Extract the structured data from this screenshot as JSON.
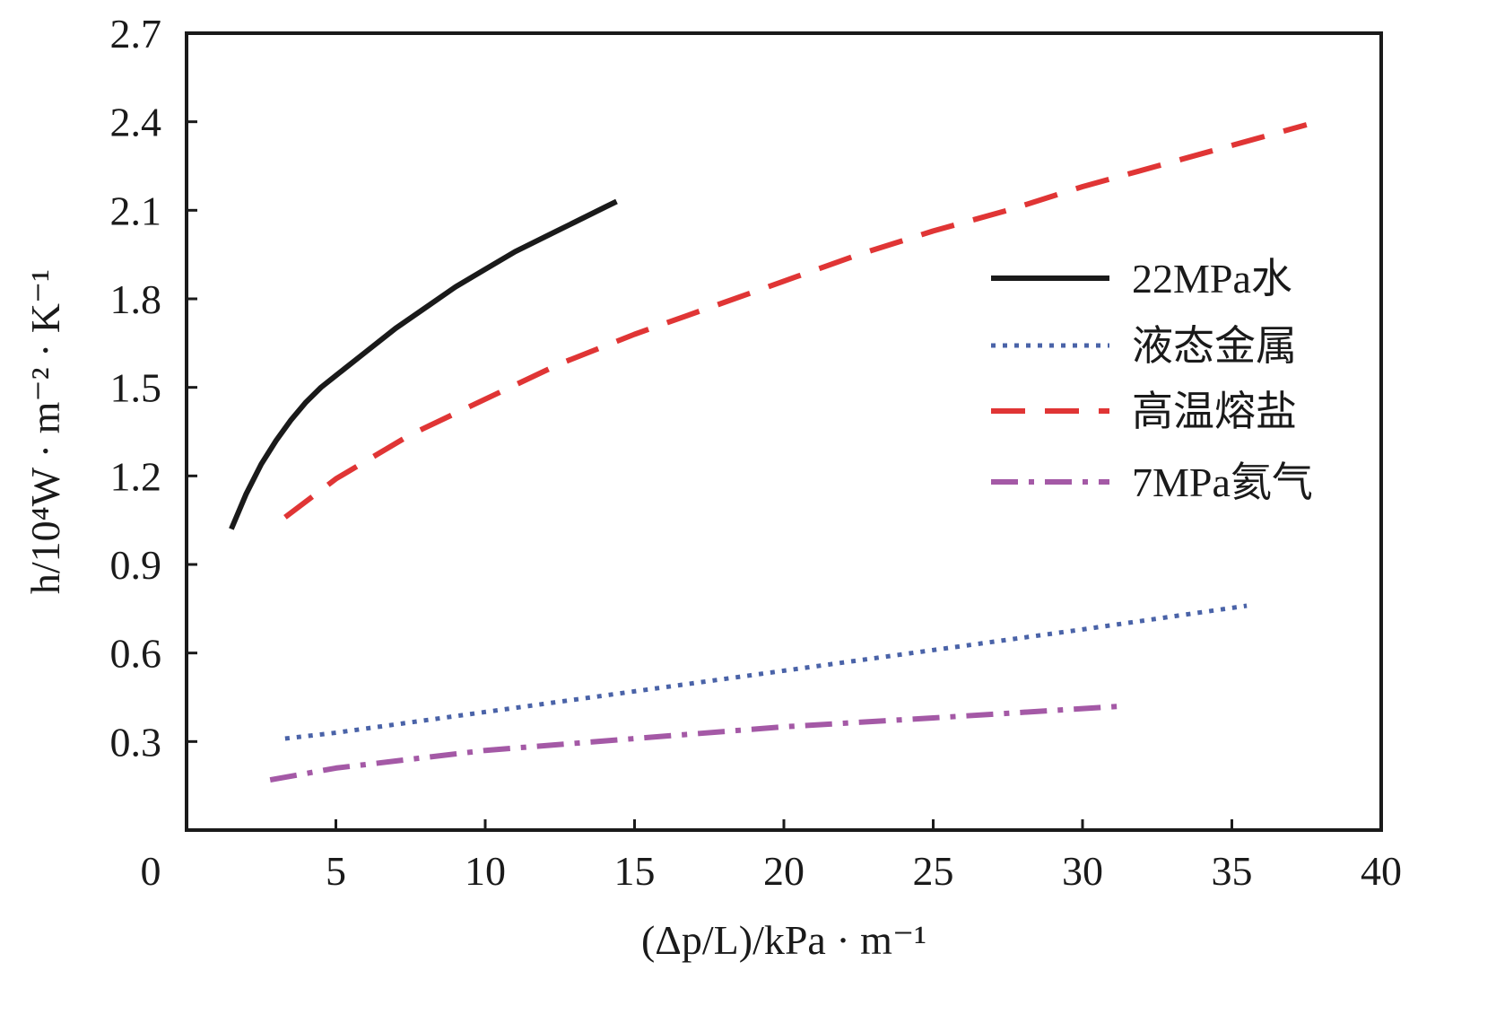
{
  "chart_data": {
    "type": "line",
    "title": "",
    "xlabel": "(Δp/L)/kPa · m⁻¹",
    "ylabel": "h/10⁴W · m⁻² · K⁻¹",
    "xlim": [
      0,
      40
    ],
    "ylim": [
      0,
      2.7
    ],
    "x_ticks": [
      0,
      5,
      10,
      15,
      20,
      25,
      30,
      35,
      40
    ],
    "x_tick_labels": [
      "0",
      "5",
      "10",
      "15",
      "20",
      "25",
      "30",
      "35",
      "40"
    ],
    "y_ticks": [
      0.3,
      0.6,
      0.9,
      1.2,
      1.5,
      1.8,
      2.1,
      2.4,
      2.7
    ],
    "y_tick_labels": [
      "0.3",
      "0.6",
      "0.9",
      "1.2",
      "1.5",
      "1.8",
      "2.1",
      "2.4",
      "2.7"
    ],
    "grid": false,
    "legend_position": "right",
    "series": [
      {
        "name": "22MPa水",
        "color": "#1a1a1a",
        "style": "solid",
        "x": [
          1.5,
          2.0,
          2.5,
          3.0,
          3.5,
          4.0,
          4.5,
          5.0,
          6.0,
          7.0,
          8.0,
          9.0,
          10.0,
          11.0,
          12.0,
          13.0,
          14.0,
          14.4
        ],
        "y": [
          1.02,
          1.14,
          1.24,
          1.32,
          1.39,
          1.45,
          1.5,
          1.54,
          1.62,
          1.7,
          1.77,
          1.84,
          1.9,
          1.96,
          2.01,
          2.06,
          2.11,
          2.13
        ]
      },
      {
        "name": "液态金属",
        "color": "#4a63a8",
        "style": "dotted",
        "x": [
          3.3,
          5,
          10,
          15,
          20,
          25,
          30,
          35.5
        ],
        "y": [
          0.31,
          0.33,
          0.4,
          0.47,
          0.54,
          0.61,
          0.68,
          0.76
        ]
      },
      {
        "name": "高温熔盐",
        "color": "#e03535",
        "style": "dashed",
        "x": [
          3.3,
          5,
          7.5,
          10,
          12.5,
          15,
          17.5,
          20,
          22.5,
          25,
          27.5,
          30,
          32.5,
          35,
          37.5
        ],
        "y": [
          1.06,
          1.19,
          1.34,
          1.46,
          1.58,
          1.68,
          1.77,
          1.86,
          1.95,
          2.03,
          2.1,
          2.18,
          2.25,
          2.32,
          2.39
        ]
      },
      {
        "name": "7MPa氦气",
        "color": "#a459a6",
        "style": "dashdot",
        "x": [
          2.8,
          5,
          10,
          15,
          20,
          25,
          31.3
        ],
        "y": [
          0.17,
          0.21,
          0.27,
          0.31,
          0.35,
          0.38,
          0.42
        ]
      }
    ]
  }
}
